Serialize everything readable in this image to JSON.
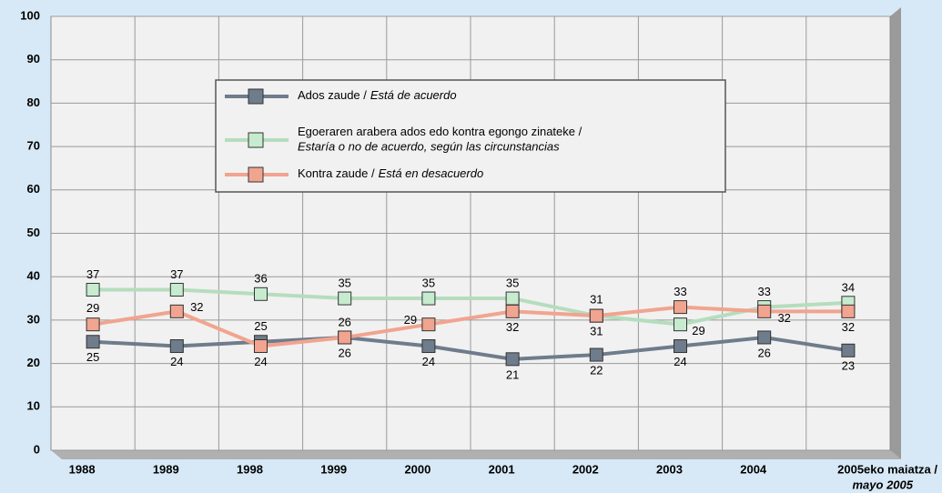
{
  "chart_data": {
    "type": "line",
    "categories": [
      {
        "label": "1988"
      },
      {
        "label": "1989"
      },
      {
        "label": "1998"
      },
      {
        "label": "1999"
      },
      {
        "label": "2000"
      },
      {
        "label": "2001"
      },
      {
        "label": "2002"
      },
      {
        "label": "2003"
      },
      {
        "label": "2004"
      },
      {
        "label": "2005eko maiatza /",
        "sublabel": "mayo 2005"
      }
    ],
    "series": [
      {
        "name": "Ados zaude /",
        "name_es": "Está de acuerdo",
        "color": "#6e7c8b",
        "marker": "#6e7c8b",
        "values": [
          25,
          24,
          25,
          26,
          24,
          21,
          22,
          24,
          26,
          23
        ]
      },
      {
        "name": "Egoeraren arabera ados edo kontra egongo zinateke /",
        "name_es": "Estaría o no de acuerdo, según las circunstancias",
        "color": "#b5ddbd",
        "marker": "#c6ebcf",
        "values": [
          37,
          37,
          36,
          35,
          35,
          35,
          31,
          29,
          33,
          34
        ]
      },
      {
        "name": "Kontra zaude /",
        "name_es": "Está en desacuerdo",
        "color": "#f1a48f",
        "marker": "#f1a48f",
        "values": [
          29,
          32,
          24,
          26,
          29,
          32,
          31,
          33,
          32,
          32
        ]
      }
    ],
    "ylim": [
      0,
      100
    ],
    "yticks": [
      0,
      10,
      20,
      30,
      40,
      50,
      60,
      70,
      80,
      90,
      100
    ],
    "grid": true
  }
}
